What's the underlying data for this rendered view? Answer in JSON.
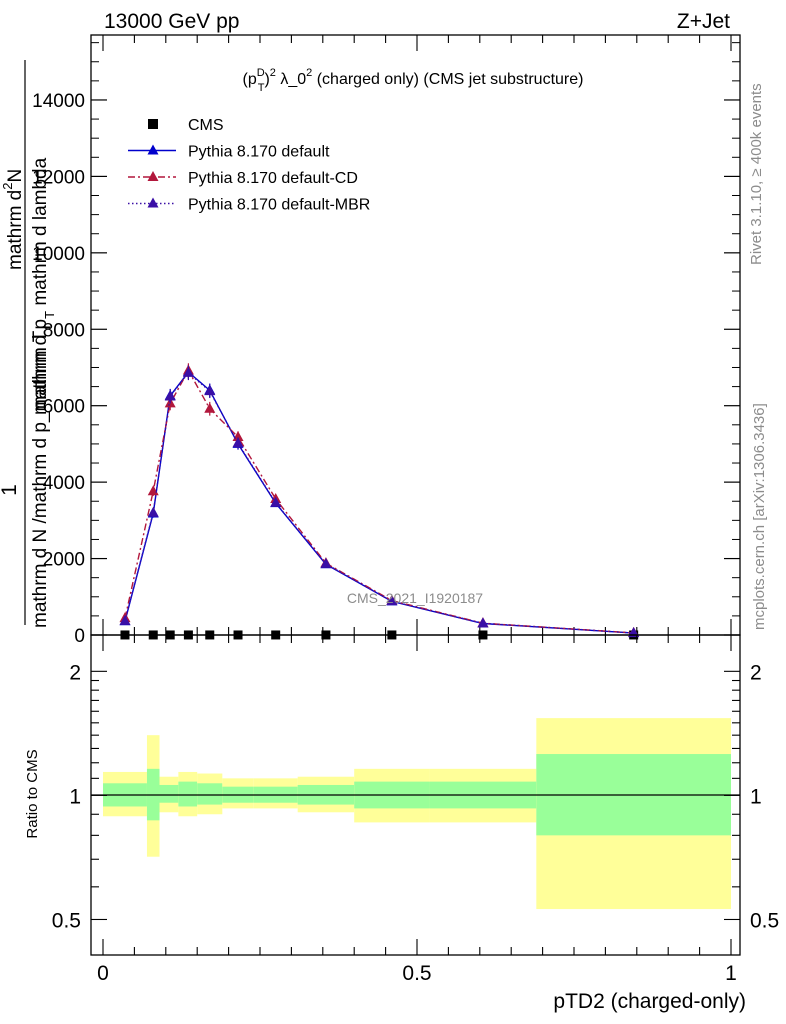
{
  "header": {
    "left": "13000 GeV pp",
    "right": "Z+Jet"
  },
  "side": {
    "rivet": "Rivet 3.1.10, ≥ 400k events",
    "mcplots": "mcplots.cern.ch [arXiv:1306.3436]"
  },
  "plot_title": {
    "pre": "(p",
    "sup_d": "D",
    "sub_t": "T",
    "sup_2": "2",
    "mid": " λ_0",
    "sup_2b": "2",
    "post": " (charged only) (CMS jet substructure)"
  },
  "ylabel_main": {
    "one": "1",
    "denominator": "mathrm d N /mathrm d p_mathrm T",
    "numerator_top": "mathrm d",
    "numerator_sup": "2",
    "numerator_n": "N",
    "mid": "mathrm d p",
    "mid_sub": "T",
    "tail": " mathrm d lambda"
  },
  "watermark": "CMS_2021_I1920187",
  "chart_data": [
    {
      "type": "line",
      "panel": "main",
      "x": [
        0.035,
        0.08,
        0.107,
        0.136,
        0.17,
        0.215,
        0.275,
        0.355,
        0.46,
        0.605,
        0.845
      ],
      "xlim": [
        -0.02,
        1.02
      ],
      "ylim": [
        0,
        15700
      ],
      "yticks": [
        0,
        2000,
        4000,
        6000,
        8000,
        10000,
        12000,
        14000
      ],
      "yticklabels": [
        "0",
        "2000",
        "4000",
        "6000",
        "8000",
        "10000",
        "12000",
        "14000"
      ],
      "series": [
        {
          "name": "CMS",
          "style": "square",
          "color": "#000000",
          "values": [
            1,
            1,
            1,
            1,
            1,
            1,
            1,
            1,
            1,
            1,
            1
          ]
        },
        {
          "name": "Pythia 8.170 default",
          "style": "solid",
          "color": "#0000cc",
          "values": [
            360,
            3180,
            6260,
            6880,
            6400,
            5000,
            3450,
            1850,
            880,
            300,
            50
          ],
          "errors": [
            50,
            110,
            180,
            190,
            180,
            150,
            100,
            60,
            30,
            15,
            5
          ]
        },
        {
          "name": "Pythia 8.170 default-CD",
          "style": "dashdot",
          "color": "#b2173c",
          "values": [
            440,
            3760,
            6060,
            6920,
            5920,
            5180,
            3560,
            1880,
            900,
            310,
            55
          ],
          "errors": [
            50,
            120,
            180,
            190,
            180,
            150,
            100,
            60,
            30,
            15,
            5
          ]
        },
        {
          "name": "Pythia 8.170 default-MBR",
          "style": "dotted",
          "color": "#3a0fa6",
          "values": [
            370,
            3200,
            6240,
            6860,
            6380,
            5020,
            3460,
            1860,
            885,
            305,
            52
          ],
          "errors": [
            50,
            110,
            180,
            190,
            180,
            150,
            100,
            60,
            30,
            15,
            5
          ]
        }
      ]
    },
    {
      "type": "area",
      "panel": "ratio",
      "ylabel": "Ratio to CMS",
      "xlabel": "pTD2 (charged-only)",
      "xticks": [
        0,
        0.5,
        1
      ],
      "xticklabels": [
        "0",
        "0.5",
        "1"
      ],
      "yticks": [
        0.5,
        1,
        2
      ],
      "yticklabels": [
        "0.5",
        "1",
        "2"
      ],
      "ylim": [
        0.41,
        2.45
      ],
      "bins": [
        {
          "x0": 0.0,
          "x1": 0.07,
          "stat_lo": 0.94,
          "stat_hi": 1.07,
          "tot_lo": 0.89,
          "tot_hi": 1.14
        },
        {
          "x0": 0.07,
          "x1": 0.09,
          "stat_lo": 0.87,
          "stat_hi": 1.16,
          "tot_lo": 0.71,
          "tot_hi": 1.4
        },
        {
          "x0": 0.09,
          "x1": 0.12,
          "stat_lo": 0.96,
          "stat_hi": 1.06,
          "tot_lo": 0.91,
          "tot_hi": 1.11
        },
        {
          "x0": 0.12,
          "x1": 0.15,
          "stat_lo": 0.94,
          "stat_hi": 1.08,
          "tot_lo": 0.89,
          "tot_hi": 1.14
        },
        {
          "x0": 0.15,
          "x1": 0.19,
          "stat_lo": 0.95,
          "stat_hi": 1.07,
          "tot_lo": 0.9,
          "tot_hi": 1.13
        },
        {
          "x0": 0.19,
          "x1": 0.24,
          "stat_lo": 0.96,
          "stat_hi": 1.05,
          "tot_lo": 0.93,
          "tot_hi": 1.1
        },
        {
          "x0": 0.24,
          "x1": 0.31,
          "stat_lo": 0.96,
          "stat_hi": 1.05,
          "tot_lo": 0.93,
          "tot_hi": 1.1
        },
        {
          "x0": 0.31,
          "x1": 0.4,
          "stat_lo": 0.95,
          "stat_hi": 1.06,
          "tot_lo": 0.91,
          "tot_hi": 1.11
        },
        {
          "x0": 0.4,
          "x1": 0.52,
          "stat_lo": 0.93,
          "stat_hi": 1.08,
          "tot_lo": 0.86,
          "tot_hi": 1.16
        },
        {
          "x0": 0.52,
          "x1": 0.69,
          "stat_lo": 0.93,
          "stat_hi": 1.08,
          "tot_lo": 0.86,
          "tot_hi": 1.16
        },
        {
          "x0": 0.69,
          "x1": 1.0,
          "stat_lo": 0.8,
          "stat_hi": 1.26,
          "tot_lo": 0.53,
          "tot_hi": 1.54
        }
      ],
      "colors": {
        "stat": "#99ff99",
        "total": "#ffff99"
      }
    }
  ]
}
